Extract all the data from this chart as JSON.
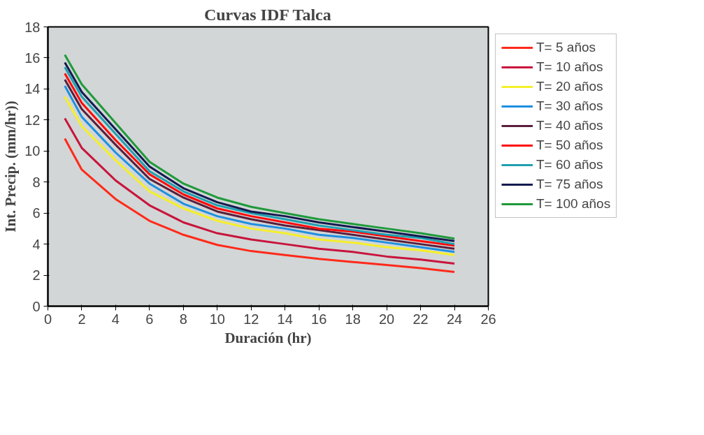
{
  "chart_data": {
    "type": "line",
    "title": "Curvas IDF Talca",
    "xlabel": "Duración (hr)",
    "ylabel": "Int. Precip. (mm/hr))",
    "x": [
      1,
      2,
      4,
      6,
      8,
      10,
      12,
      14,
      16,
      18,
      20,
      22,
      24
    ],
    "xlim": [
      0,
      26
    ],
    "xticks": [
      0,
      2,
      4,
      6,
      8,
      10,
      12,
      14,
      16,
      18,
      20,
      22,
      24,
      26
    ],
    "ylim": [
      0,
      18
    ],
    "yticks": [
      0,
      2,
      4,
      6,
      8,
      10,
      12,
      14,
      16,
      18
    ],
    "grid": false,
    "legend": "right",
    "marker": "none",
    "line_style": "solid",
    "series": [
      {
        "name": "T= 5 años",
        "color": "#ff2a1a",
        "values": [
          10.8,
          8.8,
          6.9,
          5.5,
          4.6,
          3.95,
          3.55,
          3.3,
          3.05,
          2.85,
          2.65,
          2.45,
          2.2
        ]
      },
      {
        "name": "T= 10 años",
        "color": "#c8143c",
        "values": [
          12.1,
          10.2,
          8.1,
          6.5,
          5.4,
          4.7,
          4.3,
          4.0,
          3.7,
          3.5,
          3.2,
          3.0,
          2.75
        ]
      },
      {
        "name": "T= 20 años",
        "color": "#f5ef2a",
        "values": [
          13.5,
          11.6,
          9.4,
          7.4,
          6.3,
          5.5,
          5.0,
          4.7,
          4.3,
          4.1,
          3.8,
          3.6,
          3.3
        ]
      },
      {
        "name": "T= 30 años",
        "color": "#1e8fe0",
        "values": [
          14.2,
          12.2,
          9.9,
          7.9,
          6.6,
          5.8,
          5.3,
          5.0,
          4.6,
          4.4,
          4.1,
          3.8,
          3.5
        ]
      },
      {
        "name": "T= 40 años",
        "color": "#5a1e3c",
        "values": [
          14.6,
          12.7,
          10.4,
          8.2,
          7.0,
          6.1,
          5.6,
          5.2,
          4.9,
          4.6,
          4.3,
          4.0,
          3.7
        ]
      },
      {
        "name": "T= 50 años",
        "color": "#ff0a0a",
        "values": [
          15.0,
          13.1,
          10.7,
          8.5,
          7.2,
          6.3,
          5.8,
          5.4,
          5.0,
          4.8,
          4.5,
          4.2,
          3.9
        ]
      },
      {
        "name": "T= 60 años",
        "color": "#20a0b0",
        "values": [
          15.4,
          13.5,
          11.1,
          8.7,
          7.4,
          6.5,
          6.0,
          5.6,
          5.2,
          4.9,
          4.6,
          4.4,
          4.0
        ]
      },
      {
        "name": "T= 75 años",
        "color": "#141a50",
        "values": [
          15.7,
          13.8,
          11.4,
          9.0,
          7.6,
          6.7,
          6.1,
          5.8,
          5.4,
          5.1,
          4.8,
          4.5,
          4.2
        ]
      },
      {
        "name": "T= 100 años",
        "color": "#1e9a3a",
        "values": [
          16.2,
          14.3,
          11.8,
          9.3,
          7.9,
          7.0,
          6.4,
          6.0,
          5.6,
          5.3,
          5.0,
          4.7,
          4.35
        ]
      }
    ]
  }
}
